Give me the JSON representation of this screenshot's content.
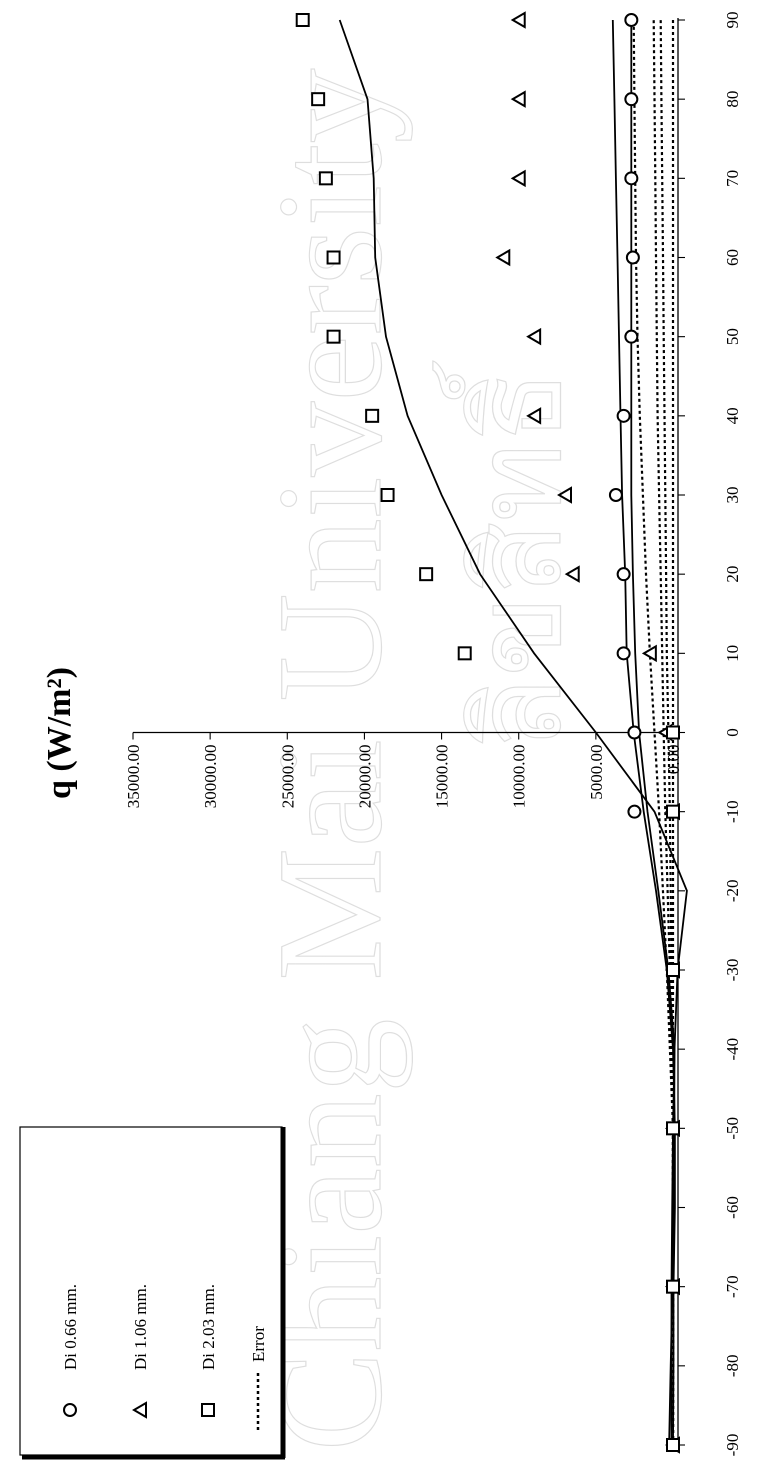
{
  "chart_data": {
    "type": "scatter",
    "title": "",
    "ylabel": "q (W/m²)",
    "xlabel": "",
    "orientation": "rotated-90",
    "xlim": [
      -90,
      90
    ],
    "ylim": [
      -200,
      35000
    ],
    "x_ticks": [
      -90,
      -80,
      -70,
      -60,
      -50,
      -40,
      -30,
      -20,
      -10,
      0,
      10,
      20,
      30,
      40,
      50,
      60,
      70,
      80,
      90
    ],
    "y_ticks": [
      0,
      5000,
      10000,
      15000,
      20000,
      25000,
      30000,
      35000
    ],
    "y_tick_labels": [
      "0.00",
      "5000.00",
      "10000.00",
      "15000.00",
      "20000.00",
      "25000.00",
      "30000.00",
      "35000.00"
    ],
    "legend_position": "bottom-left",
    "series": [
      {
        "name": "Di 0.66 mm.",
        "marker": "circle",
        "points": [
          [
            -90,
            0
          ],
          [
            -70,
            0
          ],
          [
            -50,
            0
          ],
          [
            -30,
            0
          ],
          [
            -10,
            2500
          ],
          [
            0,
            2500
          ],
          [
            10,
            3200
          ],
          [
            20,
            3200
          ],
          [
            30,
            3700
          ],
          [
            40,
            3200
          ],
          [
            50,
            2700
          ],
          [
            60,
            2600
          ],
          [
            70,
            2700
          ],
          [
            80,
            2700
          ],
          [
            90,
            2700
          ]
        ],
        "fit": [
          [
            -90,
            250
          ],
          [
            -80,
            150
          ],
          [
            -70,
            30
          ],
          [
            -60,
            -30
          ],
          [
            -50,
            -80
          ],
          [
            -40,
            -100
          ],
          [
            -30,
            300
          ],
          [
            -20,
            950
          ],
          [
            -10,
            1650
          ],
          [
            0,
            2200
          ],
          [
            10,
            2450
          ],
          [
            20,
            2600
          ],
          [
            30,
            2700
          ],
          [
            40,
            2700
          ],
          [
            50,
            2700
          ],
          [
            60,
            2700
          ],
          [
            70,
            2700
          ],
          [
            80,
            2700
          ],
          [
            90,
            2700
          ]
        ]
      },
      {
        "name": "Di 1.06 mm.",
        "marker": "triangle",
        "points": [
          [
            -90,
            0
          ],
          [
            -70,
            0
          ],
          [
            -50,
            0
          ],
          [
            -30,
            0
          ],
          [
            -10,
            0
          ],
          [
            0,
            500
          ],
          [
            10,
            1500
          ],
          [
            20,
            6500
          ],
          [
            30,
            7000
          ],
          [
            40,
            9000
          ],
          [
            50,
            9000
          ],
          [
            60,
            11000
          ],
          [
            70,
            10000
          ],
          [
            80,
            10000
          ],
          [
            90,
            10000
          ]
        ],
        "fit": [
          [
            -90,
            100
          ],
          [
            -80,
            100
          ],
          [
            -70,
            100
          ],
          [
            -60,
            50
          ],
          [
            -50,
            0
          ],
          [
            -40,
            -100
          ],
          [
            -30,
            -300
          ],
          [
            -20,
            -900
          ],
          [
            -10,
            1200
          ],
          [
            0,
            5000
          ],
          [
            10,
            9000
          ],
          [
            20,
            12500
          ],
          [
            30,
            15000
          ],
          [
            40,
            17200
          ],
          [
            50,
            18600
          ],
          [
            60,
            19300
          ],
          [
            70,
            19400
          ],
          [
            80,
            19800
          ],
          [
            90,
            21600
          ]
        ]
      },
      {
        "name": "Di 2.03 mm.",
        "marker": "square",
        "points": [
          [
            -90,
            0
          ],
          [
            -70,
            0
          ],
          [
            -50,
            0
          ],
          [
            -30,
            0
          ],
          [
            -10,
            0
          ],
          [
            0,
            0
          ],
          [
            10,
            13500
          ],
          [
            20,
            16000
          ],
          [
            30,
            18500
          ],
          [
            40,
            19500
          ],
          [
            50,
            22000
          ],
          [
            60,
            22000
          ],
          [
            70,
            22500
          ],
          [
            80,
            23000
          ],
          [
            90,
            24000
          ]
        ],
        "fit": [
          [
            -90,
            0
          ],
          [
            -80,
            -30
          ],
          [
            -70,
            -30
          ],
          [
            -60,
            -120
          ],
          [
            -50,
            -120
          ],
          [
            -40,
            0
          ],
          [
            -30,
            400
          ],
          [
            -20,
            1100
          ],
          [
            -10,
            1900
          ],
          [
            0,
            2550
          ],
          [
            10,
            3000
          ],
          [
            20,
            3100
          ],
          [
            30,
            3300
          ],
          [
            40,
            3400
          ],
          [
            50,
            3500
          ],
          [
            60,
            3600
          ],
          [
            70,
            3700
          ],
          [
            80,
            3800
          ],
          [
            90,
            3900
          ]
        ]
      },
      {
        "name": "Error",
        "marker": "none",
        "lines": [
          [
            [
              -90,
              0
            ],
            [
              -50,
              0
            ],
            [
              -30,
              400
            ],
            [
              -10,
              900
            ],
            [
              0,
              1200
            ],
            [
              10,
              1500
            ],
            [
              20,
              1750
            ],
            [
              30,
              1950
            ],
            [
              40,
              2150
            ],
            [
              50,
              2300
            ],
            [
              60,
              2400
            ],
            [
              70,
              2450
            ],
            [
              80,
              2500
            ],
            [
              90,
              2550
            ]
          ],
          [
            [
              -90,
              0
            ],
            [
              -50,
              0
            ],
            [
              -30,
              200
            ],
            [
              -10,
              500
            ],
            [
              0,
              600
            ],
            [
              10,
              700
            ],
            [
              20,
              800
            ],
            [
              30,
              900
            ],
            [
              40,
              1000
            ],
            [
              50,
              1050
            ],
            [
              60,
              1100
            ],
            [
              70,
              1150
            ],
            [
              80,
              1200
            ],
            [
              90,
              1250
            ]
          ],
          [
            [
              -90,
              0
            ],
            [
              -50,
              0
            ],
            [
              -30,
              100
            ],
            [
              -10,
              200
            ],
            [
              0,
              300
            ],
            [
              10,
              400
            ],
            [
              20,
              450
            ],
            [
              30,
              500
            ],
            [
              40,
              550
            ],
            [
              50,
              600
            ],
            [
              60,
              650
            ],
            [
              70,
              700
            ],
            [
              80,
              750
            ],
            [
              90,
              800
            ]
          ],
          [
            [
              -90,
              0
            ],
            [
              -10,
              0
            ],
            [
              90,
              0
            ]
          ]
        ]
      }
    ]
  }
}
